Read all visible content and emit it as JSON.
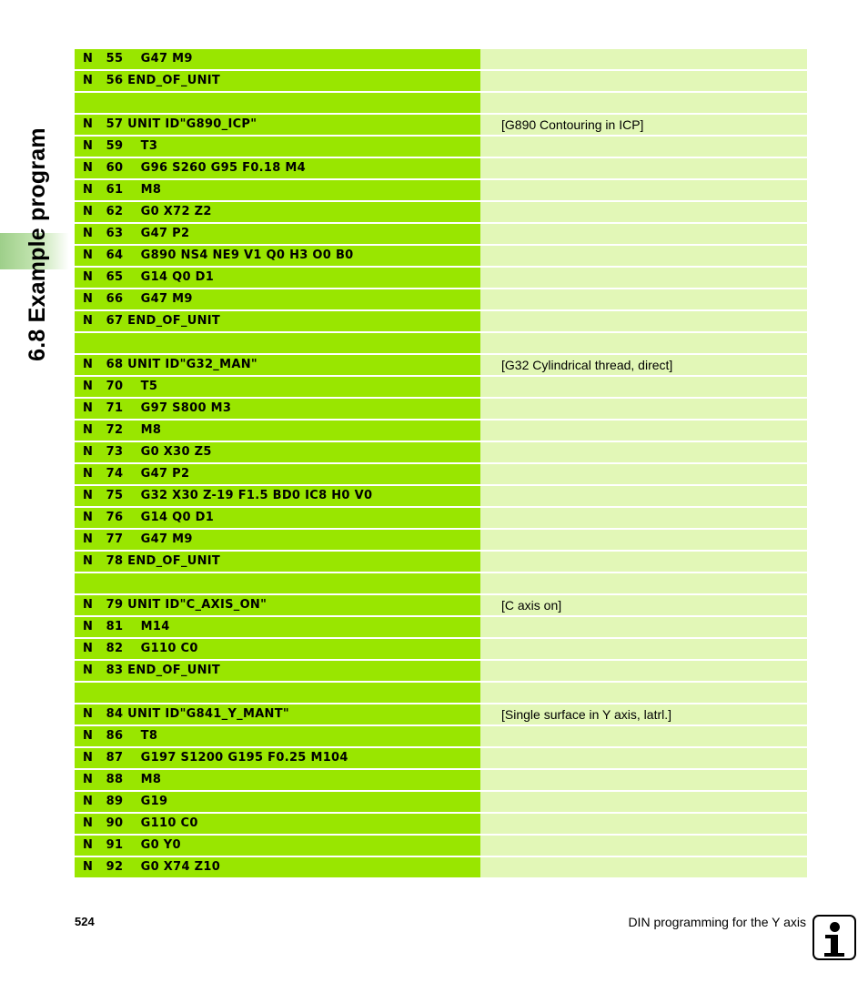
{
  "section_title": "6.8 Example program",
  "footer": {
    "page_number": "524",
    "chapter_title": "DIN programming for the Y axis",
    "icon": "info-icon"
  },
  "colors": {
    "code_cell": "#99e600",
    "comment_cell": "#e2f7b7",
    "side_tab": "#9ecf8a"
  },
  "program_rows": [
    {
      "code": "N   55    G47 M9",
      "comment": ""
    },
    {
      "code": "N   56 END_OF_UNIT",
      "comment": ""
    },
    {
      "code": "",
      "comment": ""
    },
    {
      "code": "N   57 UNIT ID\"G890_ICP\"",
      "comment": "[G890 Contouring in ICP]"
    },
    {
      "code": "N   59    T3",
      "comment": ""
    },
    {
      "code": "N   60    G96 S260 G95 F0.18 M4",
      "comment": ""
    },
    {
      "code": "N   61    M8",
      "comment": ""
    },
    {
      "code": "N   62    G0 X72 Z2",
      "comment": ""
    },
    {
      "code": "N   63    G47 P2",
      "comment": ""
    },
    {
      "code": "N   64    G890 NS4 NE9 V1 Q0 H3 O0 B0",
      "comment": ""
    },
    {
      "code": "N   65    G14 Q0 D1",
      "comment": ""
    },
    {
      "code": "N   66    G47 M9",
      "comment": ""
    },
    {
      "code": "N   67 END_OF_UNIT",
      "comment": ""
    },
    {
      "code": "",
      "comment": ""
    },
    {
      "code": "N   68 UNIT ID\"G32_MAN\"",
      "comment": "[G32 Cylindrical thread, direct]"
    },
    {
      "code": "N   70    T5",
      "comment": ""
    },
    {
      "code": "N   71    G97 S800 M3",
      "comment": ""
    },
    {
      "code": "N   72    M8",
      "comment": ""
    },
    {
      "code": "N   73    G0 X30 Z5",
      "comment": ""
    },
    {
      "code": "N   74    G47 P2",
      "comment": ""
    },
    {
      "code": "N   75    G32 X30 Z-19 F1.5 BD0 IC8 H0 V0",
      "comment": ""
    },
    {
      "code": "N   76    G14 Q0 D1",
      "comment": ""
    },
    {
      "code": "N   77    G47 M9",
      "comment": ""
    },
    {
      "code": "N   78 END_OF_UNIT",
      "comment": ""
    },
    {
      "code": "",
      "comment": ""
    },
    {
      "code": "N   79 UNIT ID\"C_AXIS_ON\"",
      "comment": "[C axis on]"
    },
    {
      "code": "N   81    M14",
      "comment": ""
    },
    {
      "code": "N   82    G110 C0",
      "comment": ""
    },
    {
      "code": "N   83 END_OF_UNIT",
      "comment": ""
    },
    {
      "code": "",
      "comment": ""
    },
    {
      "code": "N   84 UNIT ID\"G841_Y_MANT\"",
      "comment": "[Single surface in Y axis, latrl.]"
    },
    {
      "code": "N   86    T8",
      "comment": ""
    },
    {
      "code": "N   87    G197 S1200 G195 F0.25 M104",
      "comment": ""
    },
    {
      "code": "N   88    M8",
      "comment": ""
    },
    {
      "code": "N   89    G19",
      "comment": ""
    },
    {
      "code": "N   90    G110 C0",
      "comment": ""
    },
    {
      "code": "N   91    G0 Y0",
      "comment": ""
    },
    {
      "code": "N   92    G0 X74 Z10",
      "comment": ""
    }
  ]
}
